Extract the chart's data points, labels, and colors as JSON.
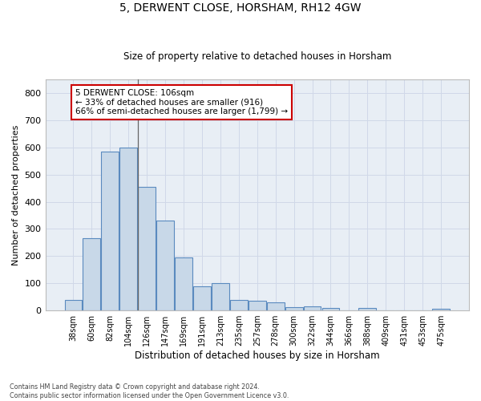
{
  "title": "5, DERWENT CLOSE, HORSHAM, RH12 4GW",
  "subtitle": "Size of property relative to detached houses in Horsham",
  "xlabel": "Distribution of detached houses by size in Horsham",
  "ylabel": "Number of detached properties",
  "categories": [
    "38sqm",
    "60sqm",
    "82sqm",
    "104sqm",
    "126sqm",
    "147sqm",
    "169sqm",
    "191sqm",
    "213sqm",
    "235sqm",
    "257sqm",
    "278sqm",
    "300sqm",
    "322sqm",
    "344sqm",
    "366sqm",
    "388sqm",
    "409sqm",
    "431sqm",
    "453sqm",
    "475sqm"
  ],
  "values": [
    38,
    265,
    585,
    600,
    455,
    330,
    195,
    90,
    100,
    38,
    35,
    30,
    12,
    14,
    10,
    0,
    10,
    0,
    0,
    0,
    5
  ],
  "bar_color": "#c8d8e8",
  "bar_edge_color": "#5a8abf",
  "annotation_text_line1": "5 DERWENT CLOSE: 106sqm",
  "annotation_text_line2": "← 33% of detached houses are smaller (916)",
  "annotation_text_line3": "66% of semi-detached houses are larger (1,799) →",
  "annotation_box_color": "#ffffff",
  "annotation_box_edge": "#cc0000",
  "ylim": [
    0,
    850
  ],
  "yticks": [
    0,
    100,
    200,
    300,
    400,
    500,
    600,
    700,
    800
  ],
  "grid_color": "#d0d8e8",
  "bg_color": "#e8eef5",
  "footnote1": "Contains HM Land Registry data © Crown copyright and database right 2024.",
  "footnote2": "Contains public sector information licensed under the Open Government Licence v3.0."
}
